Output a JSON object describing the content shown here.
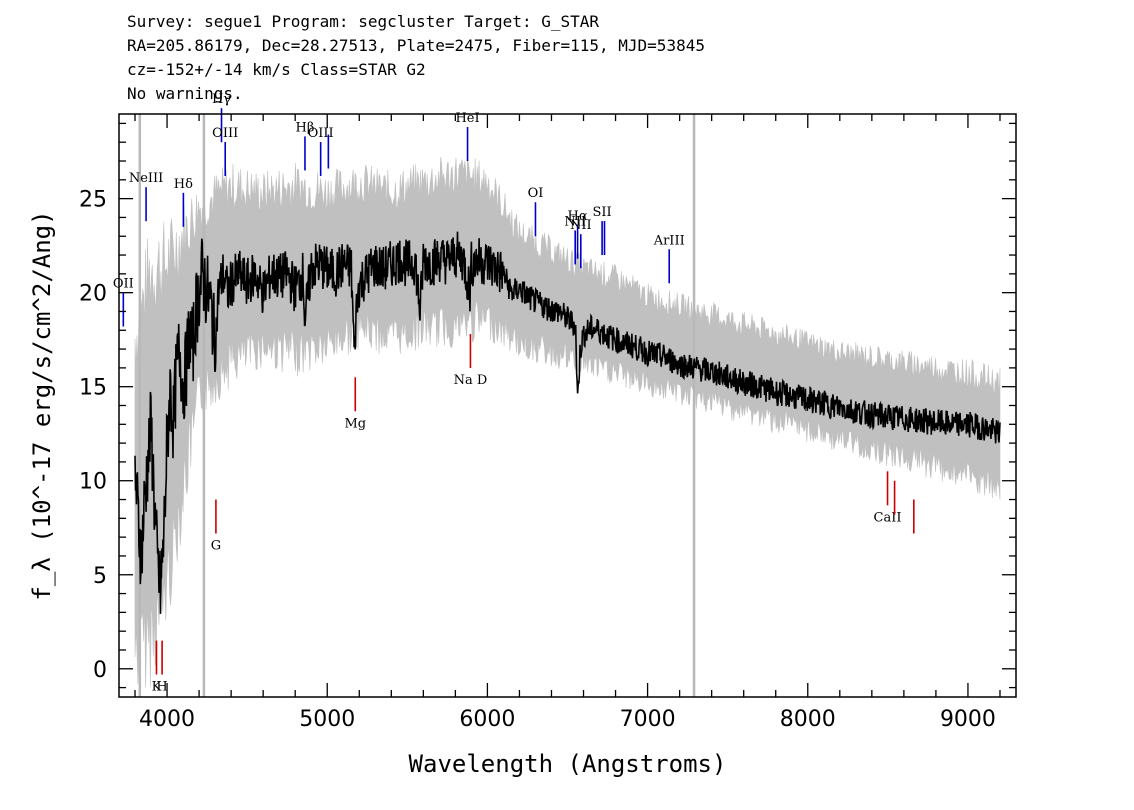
{
  "header": {
    "line1": "Survey: segue1 Program: segcluster Target: G_STAR",
    "line2": "RA=205.86179, Dec=28.27513, Plate=2475, Fiber=115, MJD=53845",
    "line3": "cz=-152+/-14 km/s Class=STAR G2",
    "line4": "No warnings."
  },
  "chart_data": {
    "type": "line",
    "title": "",
    "xlabel": "Wavelength (Angstroms)",
    "ylabel": "f_λ (10^-17 erg/s/cm^2/Ang)",
    "xlim": [
      3700,
      9300
    ],
    "ylim": [
      -1.5,
      29.5
    ],
    "x_ticks": [
      4000,
      5000,
      6000,
      7000,
      8000,
      9000
    ],
    "y_ticks": [
      0,
      5,
      10,
      15,
      20,
      25
    ],
    "grid": false,
    "series": [
      {
        "style": "flux",
        "color": "#000000",
        "x": [
          3800,
          3820,
          3840,
          3860,
          3880,
          3900,
          3920,
          3940,
          3960,
          3980,
          4000,
          4020,
          4040,
          4060,
          4080,
          4100,
          4120,
          4140,
          4160,
          4180,
          4200,
          4220,
          4250,
          4280,
          4300,
          4320,
          4350,
          4380,
          4400,
          4450,
          4500,
          4550,
          4600,
          4650,
          4700,
          4750,
          4800,
          4850,
          4860,
          4900,
          4950,
          5000,
          5050,
          5100,
          5150,
          5170,
          5180,
          5200,
          5250,
          5300,
          5350,
          5400,
          5450,
          5500,
          5550,
          5580,
          5600,
          5650,
          5700,
          5750,
          5800,
          5850,
          5890,
          5900,
          5950,
          6000,
          6050,
          6100,
          6150,
          6200,
          6250,
          6300,
          6350,
          6400,
          6450,
          6500,
          6550,
          6563,
          6580,
          6600,
          6650,
          6700,
          6750,
          6800,
          6850,
          6900,
          6950,
          7000,
          7100,
          7200,
          7300,
          7400,
          7500,
          7600,
          7700,
          7800,
          7900,
          8000,
          8100,
          8200,
          8300,
          8400,
          8500,
          8600,
          8700,
          8800,
          8900,
          9000,
          9100,
          9200
        ],
        "y": [
          10.5,
          8,
          6,
          9,
          11,
          13,
          9,
          5.5,
          4,
          7,
          12,
          15,
          13,
          16,
          17,
          15,
          16,
          18,
          17,
          19,
          20,
          21,
          20,
          19,
          17,
          20,
          21,
          20,
          20.5,
          21,
          20.5,
          21,
          20,
          21,
          20.8,
          21,
          20.2,
          21,
          18.5,
          21.3,
          21.5,
          21.2,
          21,
          21.5,
          21.3,
          16.5,
          19,
          20.5,
          21,
          21.5,
          21.2,
          21.5,
          21.8,
          21.5,
          21.7,
          19,
          21.8,
          21.6,
          21.8,
          21.7,
          22,
          21.8,
          20,
          21.5,
          21.7,
          21.6,
          21.3,
          21,
          20,
          20.2,
          19.8,
          19.5,
          19.3,
          19.1,
          19,
          18.6,
          18.3,
          14.3,
          17,
          17.8,
          18.1,
          18,
          17.7,
          17.5,
          17.3,
          17.2,
          17,
          16.8,
          16.6,
          16.2,
          16,
          15.8,
          15.5,
          15.2,
          15,
          14.7,
          14.5,
          14.3,
          14.1,
          13.9,
          13.7,
          13.5,
          13.4,
          13.3,
          13.2,
          13.1,
          13,
          13,
          12.8,
          12.5
        ]
      },
      {
        "style": "uncertainty",
        "color": "#c0c0c0",
        "x": [
          3800,
          3900,
          4000,
          4200,
          4400,
          4600,
          4800,
          5000,
          5200,
          5400,
          5600,
          5800,
          6000,
          6200,
          6400,
          6600,
          6800,
          7000,
          7400,
          7800,
          8200,
          8600,
          9000,
          9200
        ],
        "y_low": [
          -1.5,
          -1,
          2,
          13,
          15,
          16,
          15.5,
          16,
          17,
          16.5,
          17,
          17,
          17.5,
          16.5,
          16,
          15.5,
          15,
          14.5,
          13.5,
          12.5,
          11.5,
          10.5,
          9.5,
          8.5
        ],
        "y_high": [
          20,
          24,
          24,
          26,
          27,
          26.5,
          27,
          26.5,
          27,
          26.5,
          27,
          27.5,
          27,
          24,
          23,
          22,
          21.5,
          20.5,
          19.5,
          18.5,
          17.5,
          17,
          16.5,
          16
        ]
      }
    ],
    "gray_vlines_x": [
      3830,
      4230,
      7290
    ],
    "emission_lines": [
      {
        "label": "OII",
        "x": 3727,
        "y": 18.2,
        "color": "#0000cc"
      },
      {
        "label": "NeIII",
        "x": 3869,
        "y": 23.8,
        "color": "#0000cc"
      },
      {
        "label": "Hδ",
        "x": 4102,
        "y": 23.5,
        "color": "#0000cc"
      },
      {
        "label": "Hγ",
        "x": 4340,
        "y": 28,
        "color": "#0000cc"
      },
      {
        "label": "OIII",
        "x": 4363,
        "y": 26.2,
        "color": "#0000cc"
      },
      {
        "label": "Hβ",
        "x": 4861,
        "y": 26.5,
        "color": "#0000cc"
      },
      {
        "label": "OIII",
        "x": 4959,
        "y": 26.2,
        "color": "#0000cc"
      },
      {
        "label": "",
        "x": 5007,
        "y": 26.6,
        "color": "#0000cc"
      },
      {
        "label": "HeI",
        "x": 5876,
        "y": 27,
        "color": "#0000cc"
      },
      {
        "label": "OI",
        "x": 6300,
        "y": 23,
        "color": "#0000cc"
      },
      {
        "label": "NII",
        "x": 6548,
        "y": 21.5,
        "color": "#0000cc"
      },
      {
        "label": "Hα",
        "x": 6563,
        "y": 21.8,
        "color": "#0000cc"
      },
      {
        "label": "NII",
        "x": 6583,
        "y": 21.3,
        "color": "#0000cc"
      },
      {
        "label": "SII",
        "x": 6716,
        "y": 22,
        "color": "#0000cc"
      },
      {
        "label": "",
        "x": 6731,
        "y": 22,
        "color": "#0000cc"
      },
      {
        "label": "ArIII",
        "x": 7135,
        "y": 20.5,
        "color": "#0000cc"
      }
    ],
    "absorption_lines": [
      {
        "label": "K",
        "x": 3934,
        "y": 1.5,
        "color": "#cc0000"
      },
      {
        "label": "H",
        "x": 3969,
        "y": 1.5,
        "color": "#cc0000"
      },
      {
        "label": "G",
        "x": 4305,
        "y": 9,
        "color": "#cc0000"
      },
      {
        "label": "Mg",
        "x": 5175,
        "y": 15.5,
        "color": "#cc0000"
      },
      {
        "label": "Na D",
        "x": 5894,
        "y": 17.8,
        "color": "#cc0000"
      },
      {
        "label": "CaII",
        "x": 8498,
        "y": 10.5,
        "color": "#cc0000"
      },
      {
        "label": "",
        "x": 8542,
        "y": 10,
        "color": "#cc0000"
      },
      {
        "label": "",
        "x": 8662,
        "y": 9,
        "color": "#cc0000"
      }
    ]
  }
}
